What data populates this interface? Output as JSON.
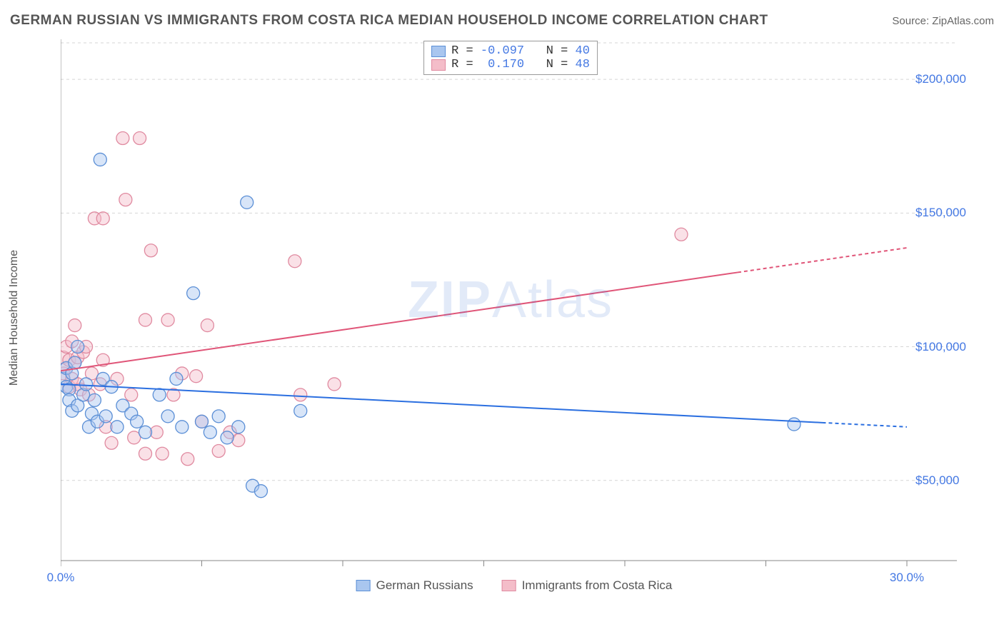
{
  "header": {
    "title": "GERMAN RUSSIAN VS IMMIGRANTS FROM COSTA RICA MEDIAN HOUSEHOLD INCOME CORRELATION CHART",
    "source_label": "Source: ",
    "source_name": "ZipAtlas.com"
  },
  "watermark": {
    "zip": "ZIP",
    "atlas": "Atlas"
  },
  "chart": {
    "type": "scatter",
    "y_axis_label": "Median Household Income",
    "background_color": "#ffffff",
    "grid_color": "#d5d5d5",
    "axis_line_color": "#888888",
    "tick_label_color": "#4478e3",
    "xlim": [
      0,
      30
    ],
    "ylim": [
      20000,
      215000
    ],
    "x_ticks": [
      0,
      5,
      10,
      15,
      20,
      25,
      30
    ],
    "x_tick_labels": [
      "0.0%",
      "",
      "",
      "",
      "",
      "",
      "30.0%"
    ],
    "y_ticks": [
      50000,
      100000,
      150000,
      200000
    ],
    "y_tick_labels": [
      "$50,000",
      "$100,000",
      "$150,000",
      "$200,000"
    ],
    "marker_radius": 9,
    "marker_fill_opacity": 0.45,
    "marker_stroke_width": 1.3,
    "line_width": 2,
    "series": [
      {
        "name": "German Russians",
        "color_fill": "#a9c6ef",
        "color_stroke": "#5b8fd6",
        "line_color": "#2b6fe0",
        "r_value": "-0.097",
        "n_value": "40",
        "trend": {
          "x1": 0,
          "y1": 86000,
          "x2": 30,
          "y2": 70000,
          "dash_from_x": 27
        },
        "points": [
          [
            0.1,
            88000
          ],
          [
            0.2,
            92000
          ],
          [
            0.2,
            85000
          ],
          [
            0.3,
            84000
          ],
          [
            0.3,
            80000
          ],
          [
            0.4,
            90000
          ],
          [
            0.4,
            76000
          ],
          [
            0.5,
            94000
          ],
          [
            0.6,
            100000
          ],
          [
            0.6,
            78000
          ],
          [
            0.8,
            82000
          ],
          [
            0.9,
            86000
          ],
          [
            1.0,
            70000
          ],
          [
            1.1,
            75000
          ],
          [
            1.2,
            80000
          ],
          [
            1.3,
            72000
          ],
          [
            1.4,
            170000
          ],
          [
            1.5,
            88000
          ],
          [
            1.6,
            74000
          ],
          [
            1.8,
            85000
          ],
          [
            2.0,
            70000
          ],
          [
            2.2,
            78000
          ],
          [
            2.5,
            75000
          ],
          [
            2.7,
            72000
          ],
          [
            3.0,
            68000
          ],
          [
            3.5,
            82000
          ],
          [
            3.8,
            74000
          ],
          [
            4.1,
            88000
          ],
          [
            4.3,
            70000
          ],
          [
            4.7,
            120000
          ],
          [
            5.0,
            72000
          ],
          [
            5.3,
            68000
          ],
          [
            5.6,
            74000
          ],
          [
            5.9,
            66000
          ],
          [
            6.3,
            70000
          ],
          [
            6.6,
            154000
          ],
          [
            6.8,
            48000
          ],
          [
            7.1,
            46000
          ],
          [
            8.5,
            76000
          ],
          [
            26.0,
            71000
          ]
        ]
      },
      {
        "name": "Immigrants from Costa Rica",
        "color_fill": "#f4bdc9",
        "color_stroke": "#e08aa0",
        "line_color": "#e05578",
        "r_value": "0.170",
        "n_value": "48",
        "trend": {
          "x1": 0,
          "y1": 91000,
          "x2": 30,
          "y2": 137000,
          "dash_from_x": 24
        },
        "points": [
          [
            0.1,
            90000
          ],
          [
            0.1,
            96000
          ],
          [
            0.2,
            92000
          ],
          [
            0.2,
            100000
          ],
          [
            0.3,
            85000
          ],
          [
            0.3,
            95000
          ],
          [
            0.4,
            88000
          ],
          [
            0.4,
            102000
          ],
          [
            0.5,
            94000
          ],
          [
            0.5,
            108000
          ],
          [
            0.6,
            86000
          ],
          [
            0.6,
            96000
          ],
          [
            0.7,
            84000
          ],
          [
            0.8,
            98000
          ],
          [
            0.9,
            100000
          ],
          [
            1.0,
            82000
          ],
          [
            1.1,
            90000
          ],
          [
            1.2,
            148000
          ],
          [
            1.4,
            86000
          ],
          [
            1.5,
            95000
          ],
          [
            1.5,
            148000
          ],
          [
            1.6,
            70000
          ],
          [
            1.8,
            64000
          ],
          [
            2.0,
            88000
          ],
          [
            2.2,
            178000
          ],
          [
            2.3,
            155000
          ],
          [
            2.5,
            82000
          ],
          [
            2.6,
            66000
          ],
          [
            2.8,
            178000
          ],
          [
            3.0,
            110000
          ],
          [
            3.0,
            60000
          ],
          [
            3.2,
            136000
          ],
          [
            3.4,
            68000
          ],
          [
            3.6,
            60000
          ],
          [
            3.8,
            110000
          ],
          [
            4.0,
            82000
          ],
          [
            4.3,
            90000
          ],
          [
            4.5,
            58000
          ],
          [
            4.8,
            89000
          ],
          [
            5.0,
            72000
          ],
          [
            5.2,
            108000
          ],
          [
            5.6,
            61000
          ],
          [
            6.0,
            68000
          ],
          [
            6.3,
            65000
          ],
          [
            8.3,
            132000
          ],
          [
            8.5,
            82000
          ],
          [
            9.7,
            86000
          ],
          [
            22.0,
            142000
          ]
        ]
      }
    ],
    "legend_corr": {
      "r_label": "R =",
      "n_label": "N ="
    },
    "bottom_legend_labels": [
      "German Russians",
      "Immigrants from Costa Rica"
    ]
  }
}
